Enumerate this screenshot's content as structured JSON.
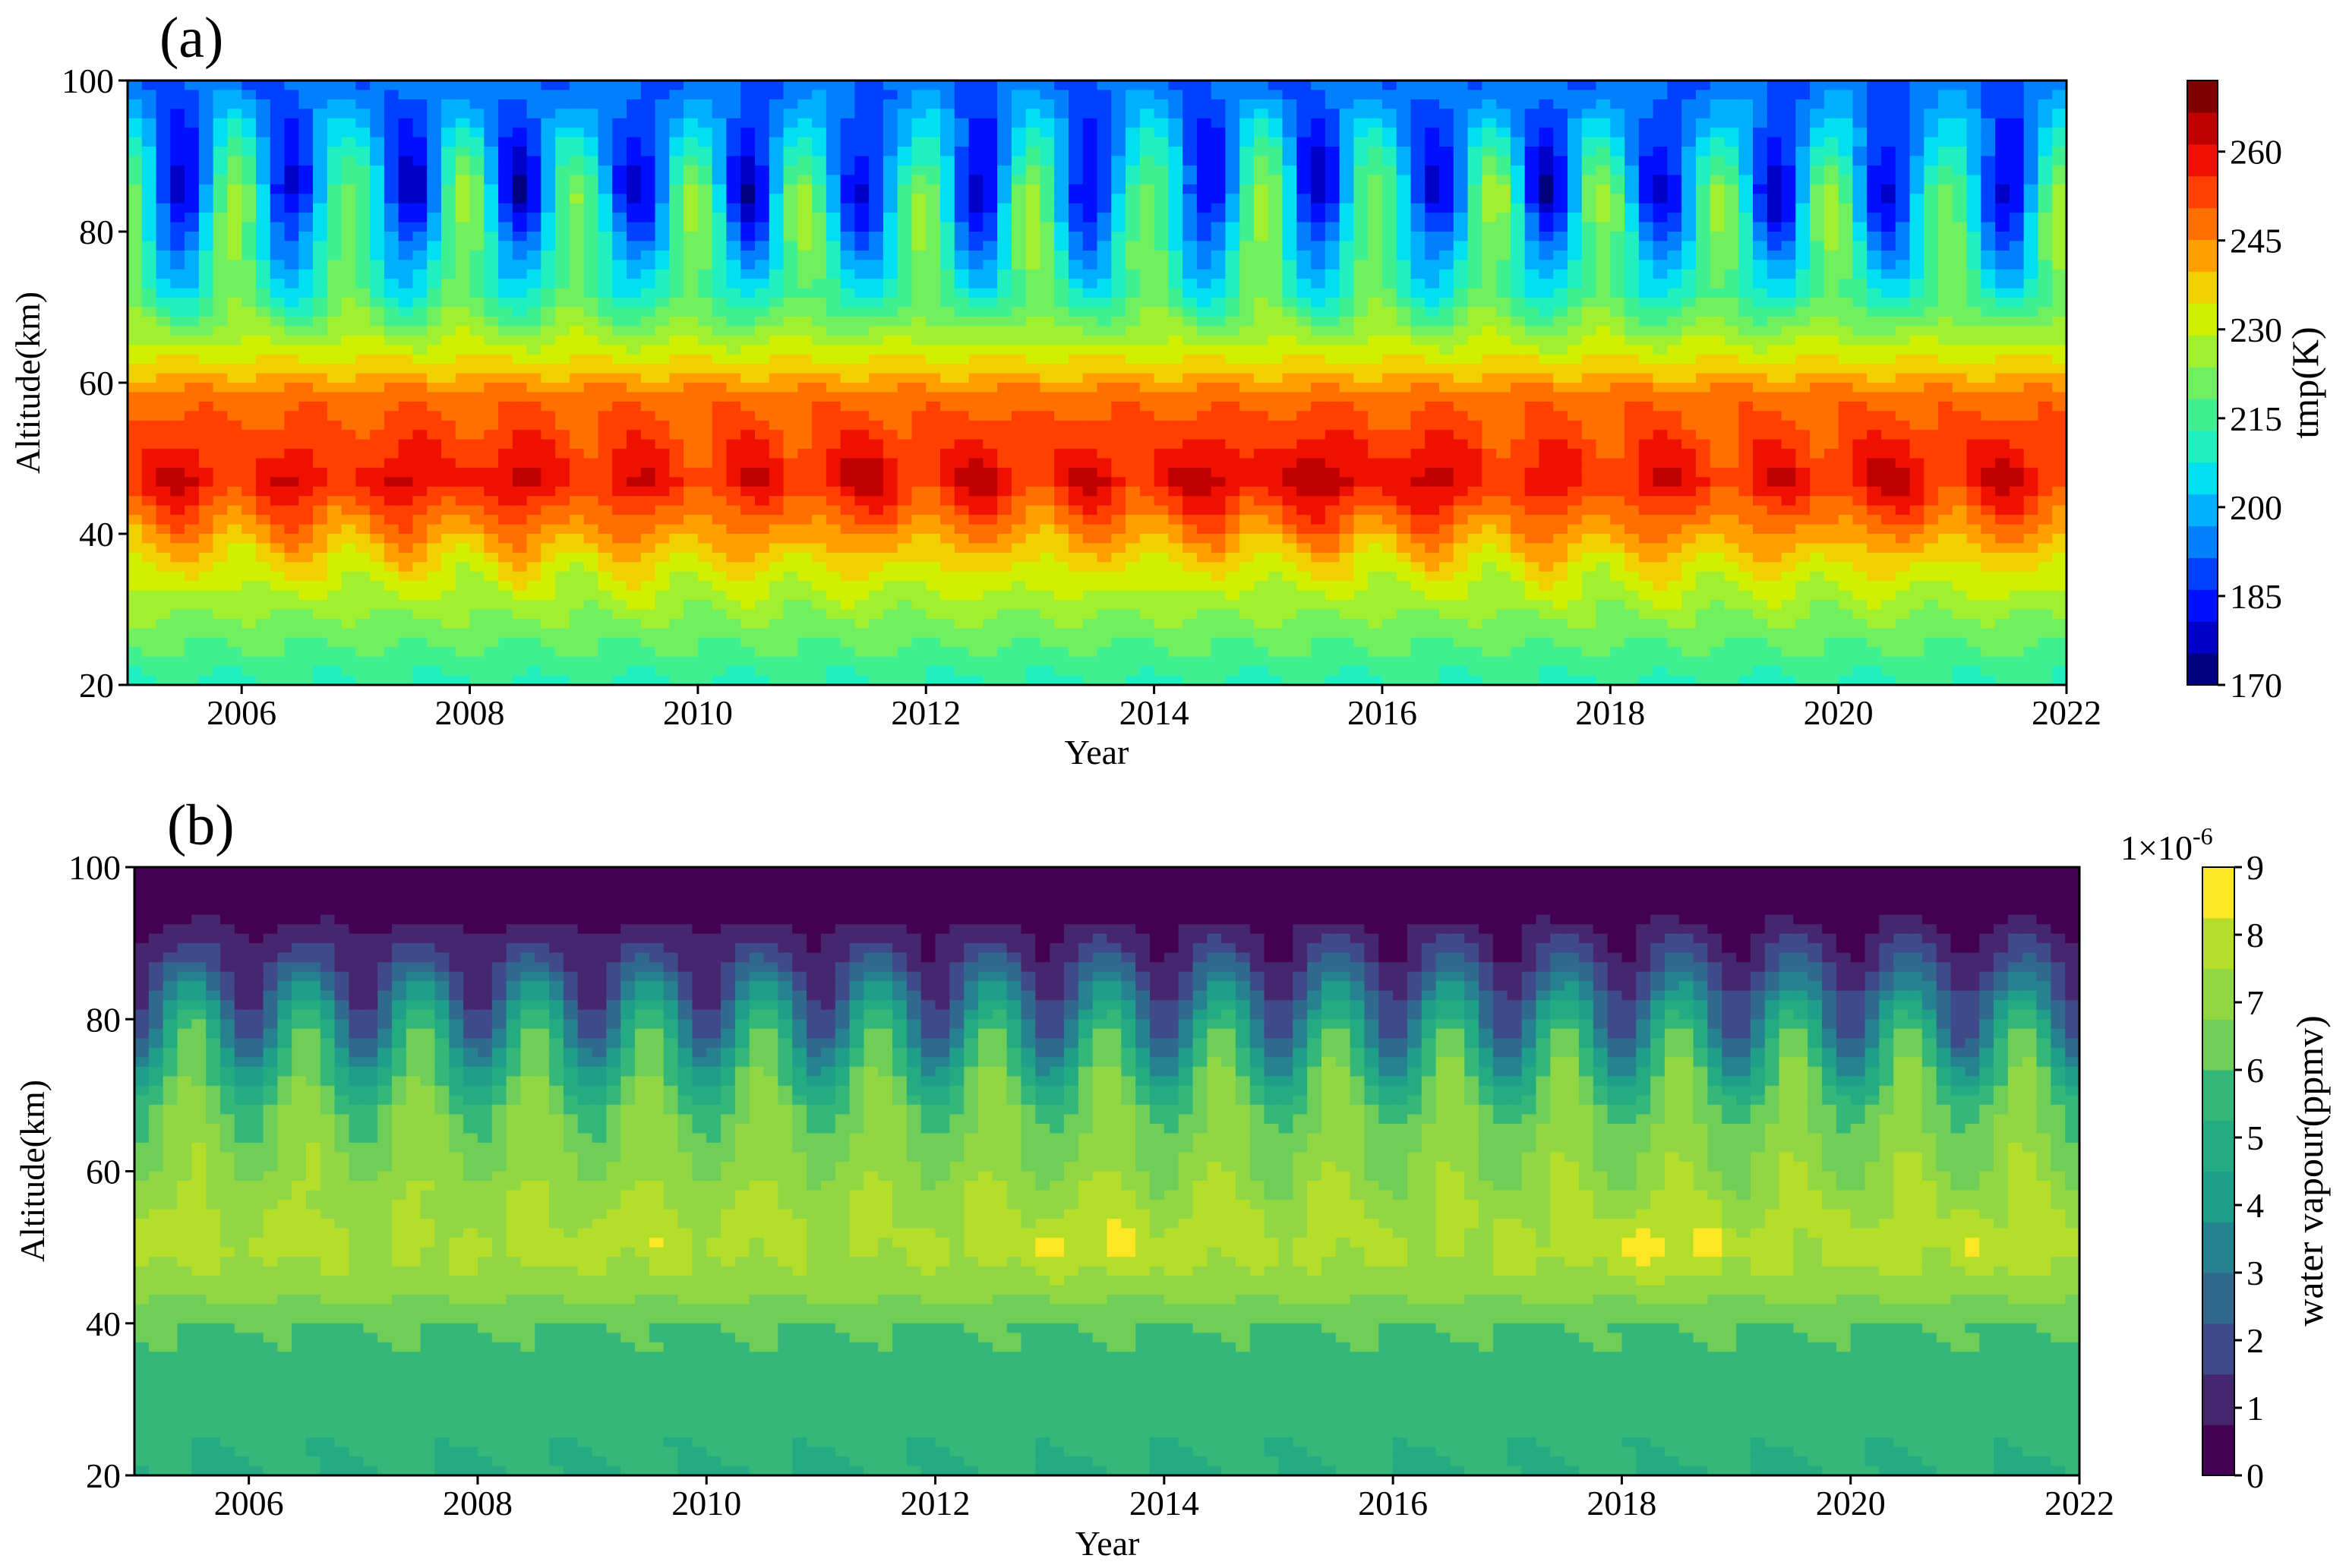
{
  "chart_data": [
    {
      "panel_label": "(a)",
      "type": "heatmap",
      "title": "",
      "xlabel": "Year",
      "ylabel": "Altitude(km)",
      "xlim": [
        2005.0,
        2022.0
      ],
      "ylim": [
        20,
        100
      ],
      "x_ticks": [
        "2006",
        "2008",
        "2010",
        "2012",
        "2014",
        "2016",
        "2018",
        "2020",
        "2022"
      ],
      "y_ticks": [
        "20",
        "40",
        "60",
        "80",
        "100"
      ],
      "colorbar": {
        "label": "tmp(K)",
        "range": [
          170,
          272
        ],
        "ticks": [
          "170",
          "185",
          "200",
          "215",
          "230",
          "245",
          "260"
        ],
        "colors": [
          "#000080",
          "#0000c8",
          "#0010ff",
          "#0040ff",
          "#0080ff",
          "#00b0ff",
          "#00e0f0",
          "#20f0c0",
          "#40f090",
          "#70f060",
          "#a0f030",
          "#d0f000",
          "#f0d000",
          "#ffa000",
          "#ff7000",
          "#ff4000",
          "#f01000",
          "#c00000",
          "#800000"
        ]
      },
      "series": [
        {
          "x": [
            2005.4,
            2006.4,
            2007.4,
            2008.4,
            2009.4,
            2010.4,
            2011.4,
            2012.4,
            2013.4,
            2014.4,
            2015.4,
            2016.4,
            2017.4,
            2018.4,
            2019.4,
            2020.4,
            2021.4
          ],
          "stratopause_peak_K": [
            263,
            262,
            263,
            264,
            262,
            261,
            264,
            263,
            262,
            265,
            267,
            265,
            261,
            262,
            261,
            264,
            263
          ],
          "mesopause_min_K": [
            178,
            178,
            176,
            177,
            176,
            177,
            177,
            178,
            178,
            178,
            178,
            177,
            178,
            177,
            178,
            177,
            177
          ]
        }
      ]
    },
    {
      "panel_label": "(b)",
      "type": "heatmap",
      "title": "",
      "xlabel": "Year",
      "ylabel": "Altitude(km)",
      "xlim": [
        2005.0,
        2022.0
      ],
      "ylim": [
        20,
        100
      ],
      "x_ticks": [
        "2006",
        "2008",
        "2010",
        "2012",
        "2014",
        "2016",
        "2018",
        "2020",
        "2022"
      ],
      "y_ticks": [
        "20",
        "40",
        "60",
        "80",
        "100"
      ],
      "colorbar": {
        "label": "water vapour(ppmv)",
        "scale": "1×10",
        "scale_exponent": "-6",
        "range": [
          0,
          9
        ],
        "ticks": [
          "0",
          "1",
          "2",
          "3",
          "4",
          "5",
          "6",
          "7",
          "8",
          "9"
        ],
        "colors": [
          "#440154",
          "#46266e",
          "#3e4a89",
          "#31688e",
          "#26828e",
          "#1f9e89",
          "#25ab82",
          "#35b779",
          "#6ece58",
          "#90d743",
          "#b5de2b",
          "#fde725"
        ]
      },
      "series": [
        {
          "x": [
            2005.4,
            2006.4,
            2007.4,
            2008.4,
            2009.4,
            2010.4,
            2011.4,
            2012.4,
            2013.4,
            2014.4,
            2015.4,
            2016.4,
            2017.4,
            2018.4,
            2019.4,
            2020.4,
            2021.4
          ],
          "peak_ppmv": [
            8.2,
            8.1,
            8.0,
            8.2,
            8.3,
            8.1,
            8.0,
            8.2,
            8.7,
            8.3,
            8.1,
            8.0,
            8.3,
            8.8,
            8.2,
            8.3,
            8.4
          ]
        }
      ]
    }
  ]
}
